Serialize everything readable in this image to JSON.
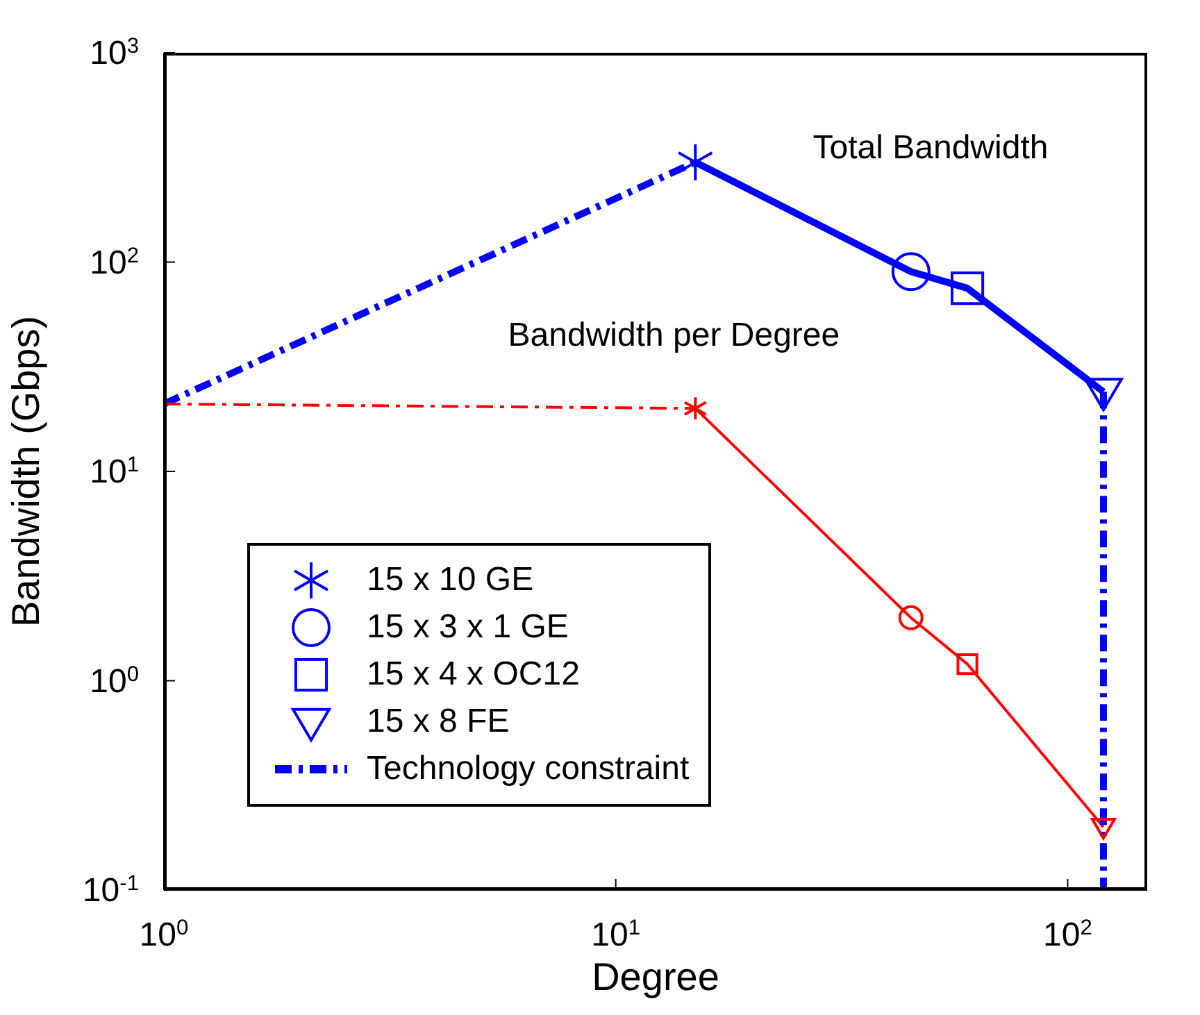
{
  "chart_data": {
    "type": "line",
    "xlabel": "Degree",
    "ylabel": "Bandwidth (Gbps)",
    "log": "xy",
    "grid": false,
    "legend": "bottom left",
    "xlim": [
      1,
      150
    ],
    "xticks": [
      {
        "value": 1,
        "label": "10$^{0}$"
      },
      {
        "value": 10,
        "label": "10$^{1}$"
      },
      {
        "value": 100,
        "label": "10$^{2}$"
      }
    ],
    "ylim": [
      0.1,
      1000
    ],
    "yticks": [
      {
        "value": 0.1,
        "label": "10$^{-1}$"
      },
      {
        "value": 1,
        "label": "10$^{0}$"
      },
      {
        "value": 10,
        "label": "10$^{1}$"
      },
      {
        "value": 100,
        "label": "10$^{2}$"
      },
      {
        "value": 1000,
        "label": "10$^{3}$"
      }
    ],
    "annotations": [
      "Total Bandwidth",
      "Bandwidth per Degree"
    ],
    "series": [
      {
        "type": "line",
        "color": "#0000ff",
        "x": [
          1,
          15
        ],
        "values": [
          21,
          300
        ],
        "line_style": "dashed"
      },
      {
        "type": "line",
        "color": "#0000ff",
        "x": [
          15,
          45,
          60,
          120
        ],
        "values": [
          300,
          90,
          75,
          24
        ],
        "line_style": "solid"
      },
      {
        "type": "line",
        "color": "#ff0000",
        "x": [
          1,
          15
        ],
        "values": [
          21,
          20
        ],
        "line_style": "dashed"
      },
      {
        "type": "line",
        "color": "#ff0000",
        "x": [
          15,
          45,
          60,
          120
        ],
        "values": [
          20,
          2,
          1.2,
          0.2
        ],
        "line_style": "solid"
      },
      {
        "type": "scatter",
        "name": "15 x 10 GE",
        "color": "#0000ff",
        "colors": [
          "#0000ff",
          "#ff0000"
        ],
        "x": [
          15,
          15
        ],
        "values": [
          300,
          20
        ],
        "marker": "cross"
      },
      {
        "type": "scatter",
        "name": "15 x 3 x 1 GE",
        "color": "#0000ff",
        "colors": [
          "#0000ff",
          "#ff0000"
        ],
        "x": [
          45,
          45
        ],
        "values": [
          90,
          2
        ],
        "marker": "circle"
      },
      {
        "type": "scatter",
        "name": "15 x 4 x OC12",
        "color": "#0000ff",
        "colors": [
          "#0000ff",
          "#ff0000"
        ],
        "x": [
          60,
          60
        ],
        "values": [
          75,
          1.2
        ],
        "marker": "square"
      },
      {
        "type": "scatter",
        "name": "15 x 8 FE",
        "color": "#0000ff",
        "colors": [
          "#0000ff",
          "#ff0000"
        ],
        "x": [
          120,
          120
        ],
        "values": [
          24,
          0.2
        ],
        "marker": "triangle"
      },
      {
        "type": "line",
        "name": "Technology constraint",
        "color": "#0000ff",
        "x": [
          120,
          120
        ],
        "values": [
          24,
          0.1
        ],
        "line_style": "dashed"
      }
    ]
  }
}
